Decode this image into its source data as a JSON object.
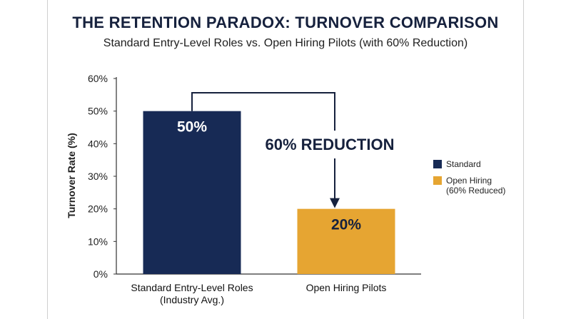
{
  "chart_data": {
    "type": "bar",
    "title": "THE RETENTION PARADOX: TURNOVER COMPARISON",
    "subtitle": "Standard Entry-Level Roles vs. Open Hiring Pilots (with 60% Reduction)",
    "ylabel": "Turnover Rate (%)",
    "xlabel": "",
    "ylim": [
      0,
      60
    ],
    "yticks": [
      "0%",
      "10%",
      "20%",
      "30%",
      "40%",
      "50%",
      "60%"
    ],
    "grid": false,
    "categories": [
      [
        "Standard Entry-Level Roles",
        "(Industry Avg.)"
      ],
      [
        "Open Hiring Pilots"
      ]
    ],
    "values": [
      50,
      20
    ],
    "data_labels": [
      "50%",
      "20%"
    ],
    "colors": [
      "#172a55",
      "#e6a532"
    ],
    "data_label_colors": [
      "#ffffff",
      "#16213d"
    ],
    "annotation": "60% REDUCTION",
    "annotation_color": "#16213d",
    "legend_position": "right",
    "legend": [
      {
        "label": "Standard",
        "color": "#172a55"
      },
      {
        "label": "Open Hiring\n(60% Reduced)",
        "color": "#e6a532"
      }
    ]
  }
}
